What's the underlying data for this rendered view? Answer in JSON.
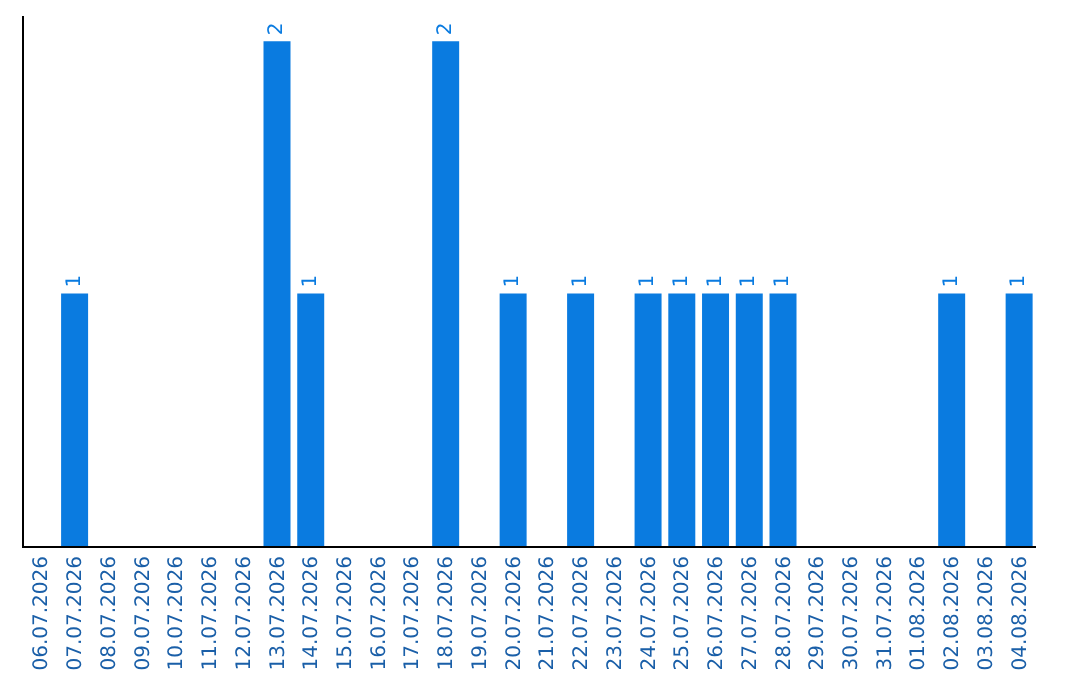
{
  "chart_data": {
    "type": "bar",
    "categories": [
      "06.07.2026",
      "07.07.2026",
      "08.07.2026",
      "09.07.2026",
      "10.07.2026",
      "11.07.2026",
      "12.07.2026",
      "13.07.2026",
      "14.07.2026",
      "15.07.2026",
      "16.07.2026",
      "17.07.2026",
      "18.07.2026",
      "19.07.2026",
      "20.07.2026",
      "21.07.2026",
      "22.07.2026",
      "23.07.2026",
      "24.07.2026",
      "25.07.2026",
      "26.07.2026",
      "27.07.2026",
      "28.07.2026",
      "29.07.2026",
      "30.07.2026",
      "31.07.2026",
      "01.08.2026",
      "02.08.2026",
      "03.08.2026",
      "04.08.2026"
    ],
    "values": [
      0,
      1,
      0,
      0,
      0,
      0,
      0,
      2,
      1,
      0,
      0,
      0,
      2,
      0,
      1,
      0,
      1,
      0,
      1,
      1,
      1,
      1,
      1,
      0,
      0,
      0,
      0,
      1,
      0,
      1
    ],
    "value_labels": [
      null,
      "1",
      null,
      null,
      null,
      null,
      null,
      "2",
      "1",
      null,
      null,
      null,
      "2",
      null,
      "1",
      null,
      "1",
      null,
      "1",
      "1",
      "1",
      "1",
      "1",
      null,
      null,
      null,
      null,
      "1",
      null,
      "1"
    ],
    "color": "#0a7be0",
    "ylim": [
      0,
      2.1
    ],
    "tick_labels": "x",
    "legend": false
  }
}
